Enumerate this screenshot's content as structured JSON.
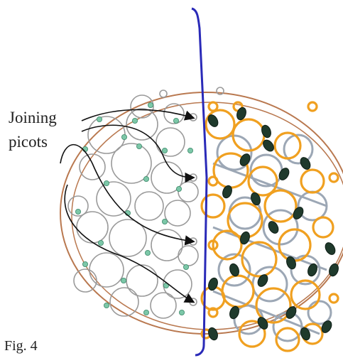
{
  "labels": {
    "line1": "Joining",
    "line2": "picots",
    "figure": "Fig. 4"
  },
  "colors": {
    "background": "#ffffff",
    "outer_ring": "#b9784f",
    "left_lace": "#9a9a9a",
    "left_beads": "#7cc7a8",
    "right_lace_orange": "#f0a020",
    "right_lace_gray": "#9ca7b5",
    "right_beads": "#1f3a2c",
    "divider": "#2222bb",
    "arrows": "#111111"
  },
  "icons": [
    "joining-arrow",
    "bead",
    "picot-ring",
    "divider-line"
  ]
}
